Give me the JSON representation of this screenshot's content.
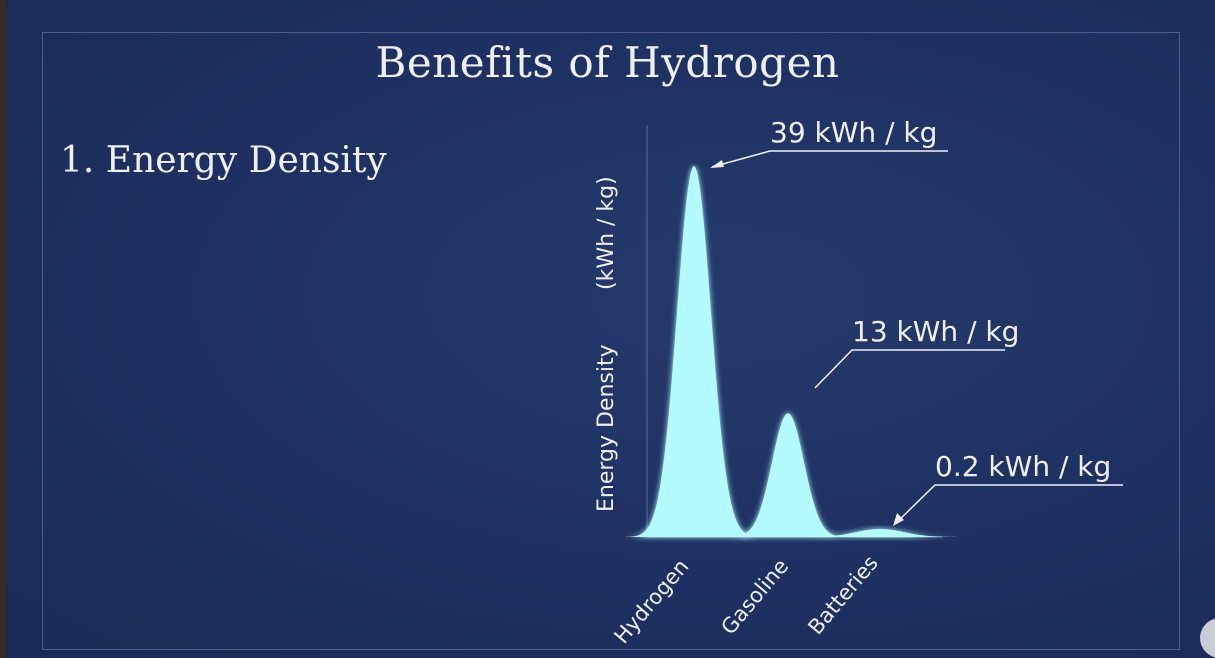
{
  "slide": {
    "title": "Benefits of Hydrogen",
    "subtitle": "1. Energy Density"
  },
  "chart_data": {
    "type": "area",
    "ylabel": "Energy Density",
    "ylabel_unit": "(kWh / kg)",
    "categories": [
      "Hydrogen",
      "Gasoline",
      "Batteries"
    ],
    "values": [
      39,
      13,
      0.2
    ],
    "annotations": [
      "39 kWh / kg",
      "13 kWh / kg",
      "0.2 kWh / kg"
    ],
    "grid": false,
    "fill_color": "#b3fbff",
    "background_color": "#1f3163"
  }
}
